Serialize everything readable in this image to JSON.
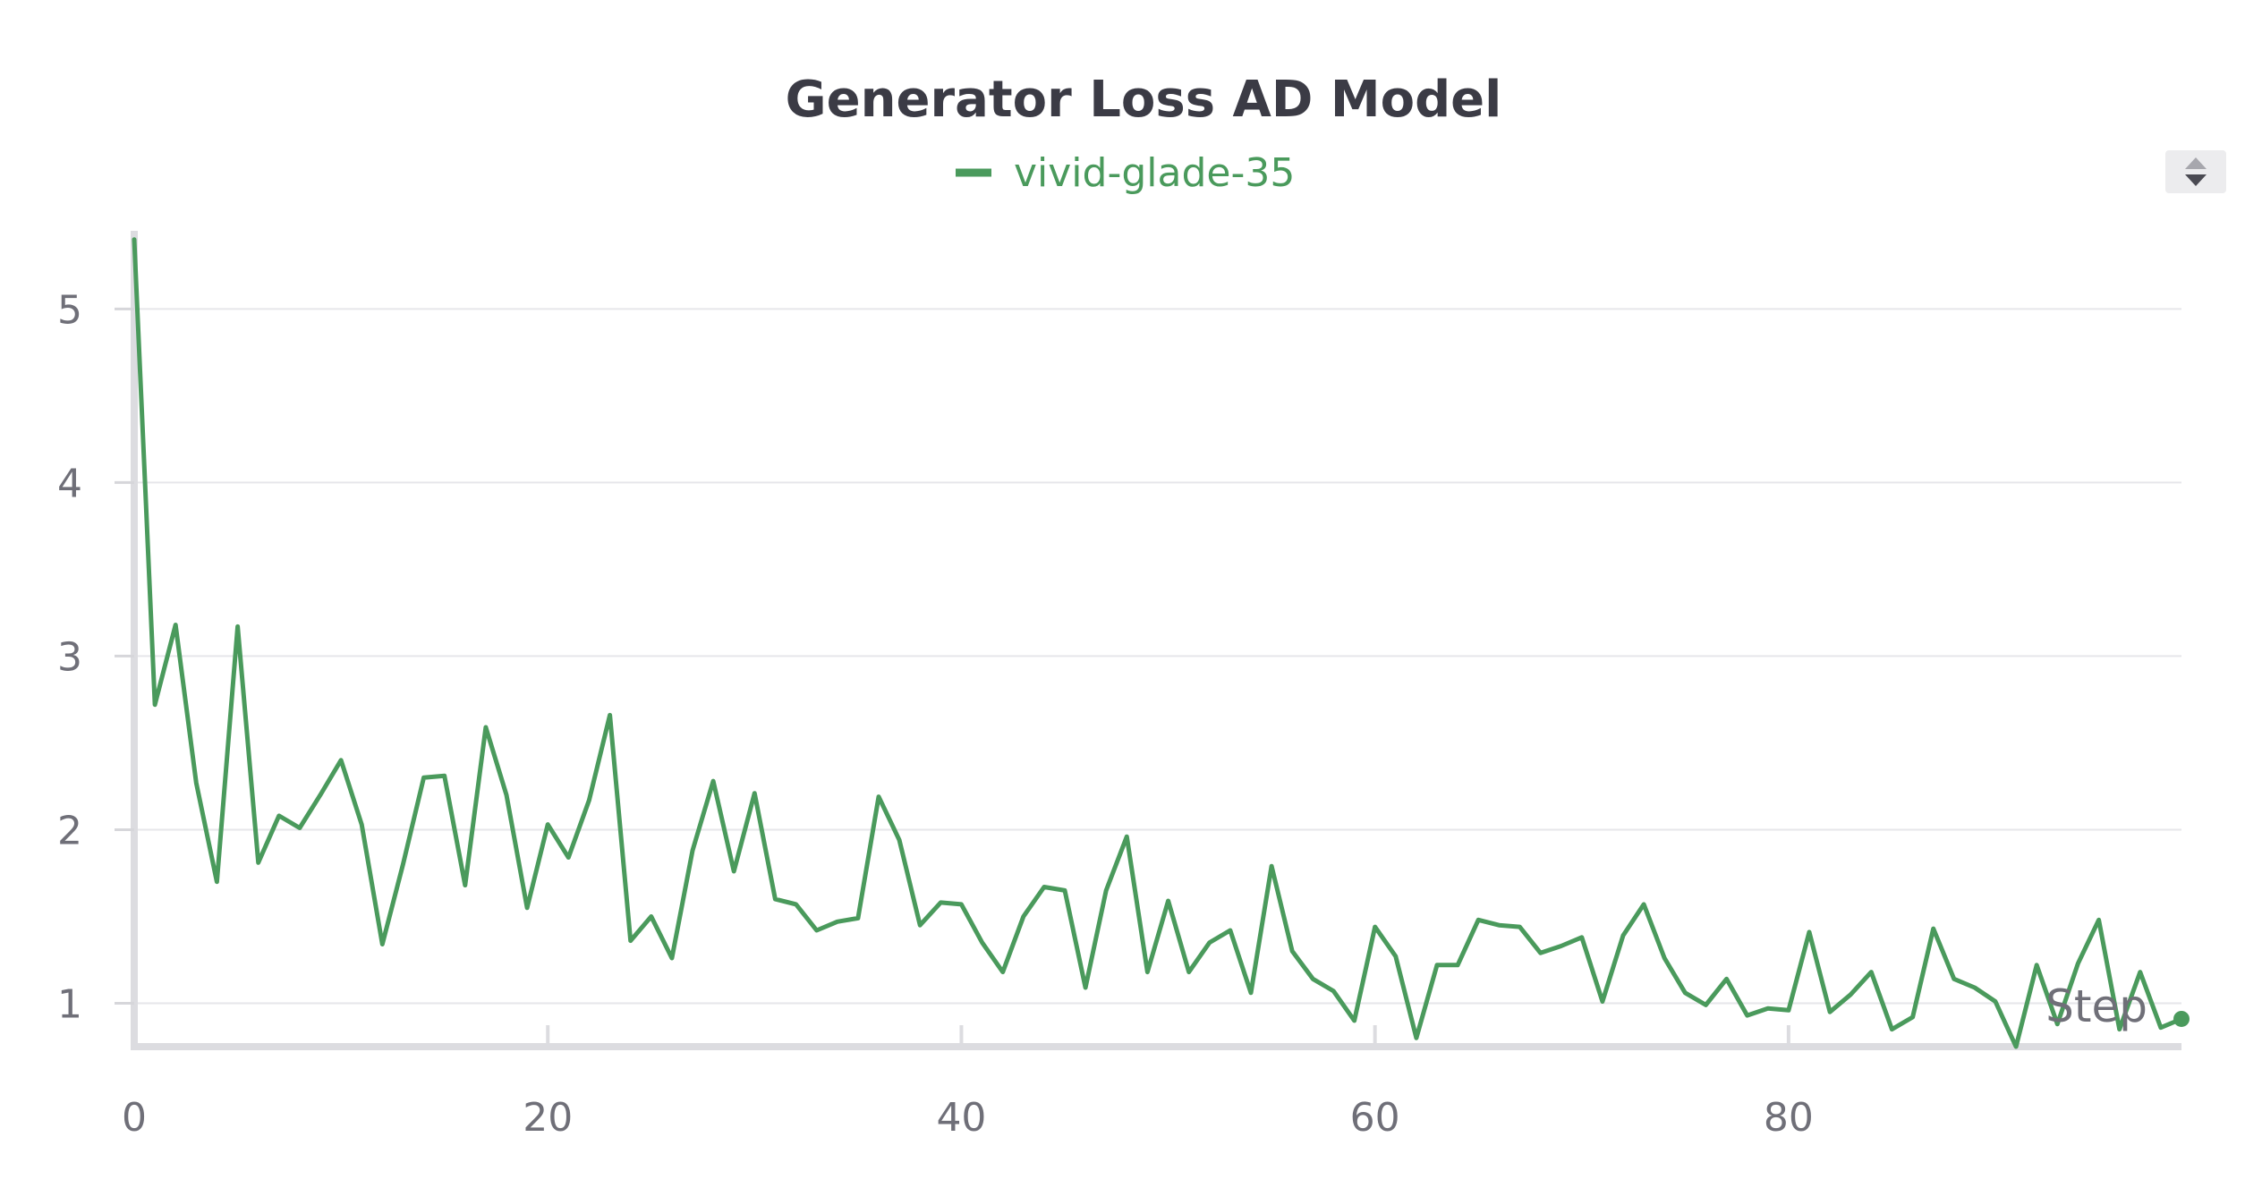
{
  "chart_data": {
    "type": "line",
    "title": "Generator Loss AD Model",
    "xlabel": "Step",
    "ylabel": "",
    "xlim": [
      0,
      99
    ],
    "ylim": [
      0.75,
      5.45
    ],
    "x_ticks": [
      0,
      20,
      40,
      60,
      80
    ],
    "y_ticks": [
      1,
      2,
      3,
      4,
      5
    ],
    "grid": "horizontal",
    "legend_position": "top-center",
    "series": [
      {
        "name": "vivid-glade-35",
        "color": "#4a9a5c",
        "x": [
          0,
          1,
          2,
          3,
          4,
          5,
          6,
          7,
          8,
          9,
          10,
          11,
          12,
          13,
          14,
          15,
          16,
          17,
          18,
          19,
          20,
          21,
          22,
          23,
          24,
          25,
          26,
          27,
          28,
          29,
          30,
          31,
          32,
          33,
          34,
          35,
          36,
          37,
          38,
          39,
          40,
          41,
          42,
          43,
          44,
          45,
          46,
          47,
          48,
          49,
          50,
          51,
          52,
          53,
          54,
          55,
          56,
          57,
          58,
          59,
          60,
          61,
          62,
          63,
          64,
          65,
          66,
          67,
          68,
          69,
          70,
          71,
          72,
          73,
          74,
          75,
          76,
          77,
          78,
          79,
          80,
          81,
          82,
          83,
          84,
          85,
          86,
          87,
          88,
          89,
          90,
          91,
          92,
          93,
          94,
          95,
          96,
          97,
          98,
          99
        ],
        "values": [
          5.4,
          2.72,
          3.18,
          2.27,
          1.7,
          3.17,
          1.81,
          2.08,
          2.01,
          2.2,
          2.4,
          2.03,
          1.34,
          1.8,
          2.3,
          2.31,
          1.68,
          2.59,
          2.2,
          1.55,
          2.03,
          1.84,
          2.17,
          2.66,
          1.36,
          1.5,
          1.26,
          1.88,
          2.28,
          1.76,
          2.21,
          1.6,
          1.57,
          1.42,
          1.47,
          1.49,
          2.19,
          1.94,
          1.45,
          1.58,
          1.57,
          1.35,
          1.18,
          1.5,
          1.67,
          1.65,
          1.09,
          1.65,
          1.96,
          1.18,
          1.59,
          1.18,
          1.35,
          1.42,
          1.06,
          1.79,
          1.3,
          1.14,
          1.07,
          0.9,
          1.44,
          1.27,
          0.8,
          1.22,
          1.22,
          1.48,
          1.45,
          1.44,
          1.29,
          1.33,
          1.38,
          1.01,
          1.39,
          1.57,
          1.26,
          1.06,
          0.99,
          1.14,
          0.93,
          0.97,
          0.96,
          1.41,
          0.95,
          1.05,
          1.18,
          0.85,
          0.92,
          1.43,
          1.14,
          1.09,
          1.01,
          0.75,
          1.22,
          0.88,
          1.23,
          1.48,
          0.85,
          1.18,
          0.86,
          0.91
        ]
      }
    ]
  },
  "legend": {
    "scroll_icon": "up-down-arrows-icon"
  }
}
